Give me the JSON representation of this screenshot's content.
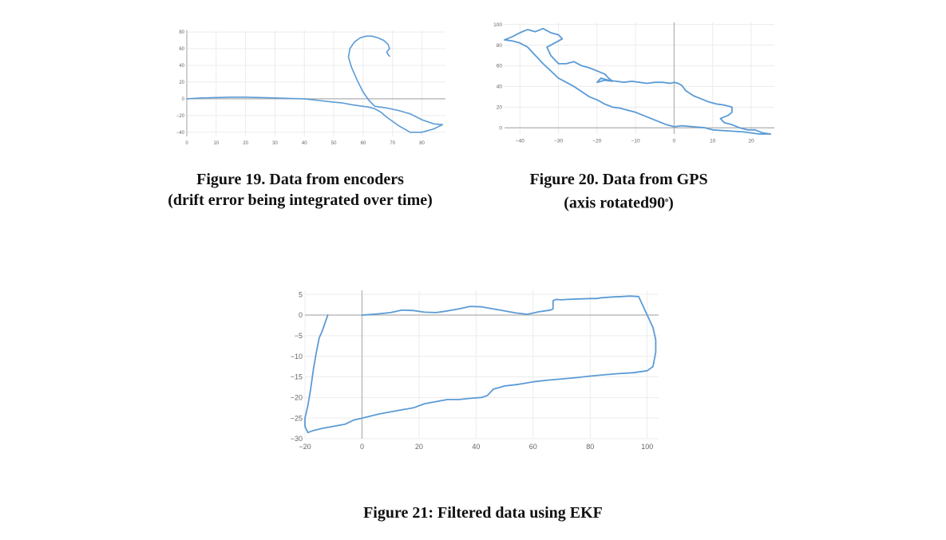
{
  "captions": {
    "fig19_line1": "Figure 19. Data from encoders",
    "fig19_line2": "(drift error being integrated over time)",
    "fig20_line1": "Figure 20. Data from GPS",
    "fig20_line2": "(axis rotated",
    "fig20_line2_num": "90",
    "fig20_line2_sup": "o",
    "fig20_line2_end": ")",
    "fig21": "Figure 21: Filtered data using EKF"
  },
  "line_color": "#5b9bd5",
  "chart_data": [
    {
      "type": "line",
      "title": "",
      "xlabel": "",
      "ylabel": "",
      "xlim": [
        0,
        88
      ],
      "ylim": [
        -45,
        82
      ],
      "xticks": [
        0,
        10,
        20,
        30,
        40,
        50,
        60,
        70,
        80
      ],
      "yticks": [
        80,
        60,
        40,
        20,
        0,
        -20,
        -40
      ],
      "grid": true,
      "series": [
        {
          "x": [
            0,
            5,
            10,
            15,
            20,
            25,
            30,
            35,
            40,
            45,
            50,
            53,
            56,
            58,
            60,
            62,
            64,
            66,
            68,
            72,
            76,
            80,
            84,
            87,
            84,
            80,
            76,
            72,
            68,
            66,
            64,
            62,
            60,
            58,
            56,
            55,
            55.5,
            57,
            59,
            61,
            63,
            65,
            67,
            68.5,
            69,
            68.5,
            68,
            68.5,
            69
          ],
          "y": [
            0,
            1,
            1.5,
            2,
            2,
            1.5,
            1,
            0.5,
            0,
            -2,
            -4,
            -5,
            -7,
            -8,
            -9,
            -10,
            -12,
            -16,
            -22,
            -32,
            -40,
            -40,
            -36,
            -31,
            -30,
            -25,
            -18,
            -14,
            -11,
            -10,
            -9,
            -2,
            8,
            22,
            38,
            50,
            60,
            68,
            73,
            75,
            75,
            73,
            70,
            65,
            60,
            58,
            56,
            53,
            51
          ]
        }
      ]
    },
    {
      "type": "line",
      "title": "",
      "xlabel": "",
      "ylabel": "",
      "xlim": [
        -44,
        26
      ],
      "ylim": [
        -6,
        102
      ],
      "xticks": [
        -40,
        -30,
        -20,
        -10,
        0,
        10,
        20
      ],
      "yticks": [
        100,
        80,
        60,
        40,
        20,
        0
      ],
      "grid": true,
      "series": [
        {
          "x": [
            -44,
            -42,
            -40,
            -38,
            -36,
            -34,
            -32,
            -30,
            -29,
            -31,
            -33,
            -32,
            -30,
            -28,
            -26,
            -24,
            -22,
            -20,
            -18,
            -17,
            -16,
            -18,
            -20,
            -19,
            -17,
            -15,
            -13,
            -11,
            -9,
            -7,
            -5,
            -3,
            -1,
            0,
            1,
            2,
            3,
            5,
            7,
            9,
            11,
            13,
            15,
            15,
            14,
            12,
            13,
            15,
            17,
            19,
            21,
            23,
            25,
            22,
            18,
            14,
            10,
            8,
            5,
            2,
            0,
            -2,
            -4,
            -6,
            -8,
            -10,
            -12,
            -14,
            -16,
            -18,
            -20,
            -22,
            -24,
            -26,
            -28,
            -30,
            -32,
            -34,
            -36,
            -38,
            -40,
            -42,
            -44
          ],
          "y": [
            85,
            88,
            92,
            95,
            93,
            96,
            92,
            90,
            86,
            82,
            78,
            70,
            62,
            62,
            64,
            60,
            58,
            55,
            52,
            48,
            45,
            46,
            44,
            48,
            46,
            45,
            44,
            45,
            44,
            43,
            44,
            44,
            43,
            44,
            43,
            41,
            36,
            31,
            28,
            25,
            23,
            22,
            20,
            15,
            12,
            9,
            5,
            3,
            0,
            -2,
            -2,
            -5,
            -6,
            -6,
            -4,
            -3,
            -2,
            0,
            1,
            2,
            1,
            3,
            6,
            9,
            12,
            15,
            17,
            19,
            20,
            23,
            27,
            30,
            35,
            40,
            44,
            48,
            55,
            62,
            70,
            78,
            82,
            84,
            85
          ]
        }
      ]
    },
    {
      "type": "line",
      "title": "",
      "xlabel": "",
      "ylabel": "",
      "xlim": [
        -20,
        104
      ],
      "ylim": [
        -30,
        6
      ],
      "xticks": [
        -20,
        0,
        20,
        40,
        60,
        80,
        100
      ],
      "yticks": [
        5,
        0,
        -5,
        -10,
        -15,
        -20,
        -25,
        -30
      ],
      "grid": true,
      "series": [
        {
          "x": [
            -12,
            -13,
            -14,
            -15,
            -16,
            -17,
            -18,
            -19,
            -20,
            -20,
            -19,
            -17,
            -14,
            -10,
            -6,
            -3,
            0,
            3,
            6,
            10,
            14,
            18,
            22,
            26,
            30,
            34,
            38,
            42,
            44,
            46,
            50,
            55,
            60,
            65,
            70,
            75,
            80,
            85,
            90,
            95,
            100,
            102,
            103,
            103,
            102,
            100,
            97,
            94,
            91,
            88,
            86,
            84,
            82,
            80,
            76,
            72,
            70,
            68,
            67,
            67,
            66,
            62,
            58,
            54,
            50,
            46,
            42,
            38,
            34,
            30,
            26,
            22,
            18,
            14,
            10,
            6,
            2,
            0
          ],
          "y": [
            0,
            -2,
            -4,
            -5.5,
            -9,
            -13,
            -18,
            -22,
            -25,
            -27,
            -28.5,
            -28,
            -27.5,
            -27,
            -26.5,
            -25.5,
            -25,
            -24.5,
            -24,
            -23.5,
            -23,
            -22.5,
            -21.5,
            -21,
            -20.5,
            -20.5,
            -20.2,
            -20,
            -19.5,
            -18,
            -17.2,
            -16.8,
            -16.2,
            -15.8,
            -15.5,
            -15.2,
            -14.8,
            -14.5,
            -14.2,
            -14,
            -13.5,
            -12.5,
            -9,
            -6,
            -3,
            0,
            4.5,
            4.6,
            4.5,
            4.4,
            4.3,
            4.2,
            4.0,
            4.0,
            3.9,
            3.8,
            3.7,
            3.8,
            3.5,
            1.5,
            1.2,
            0.8,
            0.2,
            0.5,
            1.0,
            1.5,
            2.0,
            2.1,
            1.5,
            1.0,
            0.6,
            0.7,
            1.1,
            1.2,
            0.6,
            0.3,
            0.1,
            0
          ]
        }
      ]
    }
  ]
}
